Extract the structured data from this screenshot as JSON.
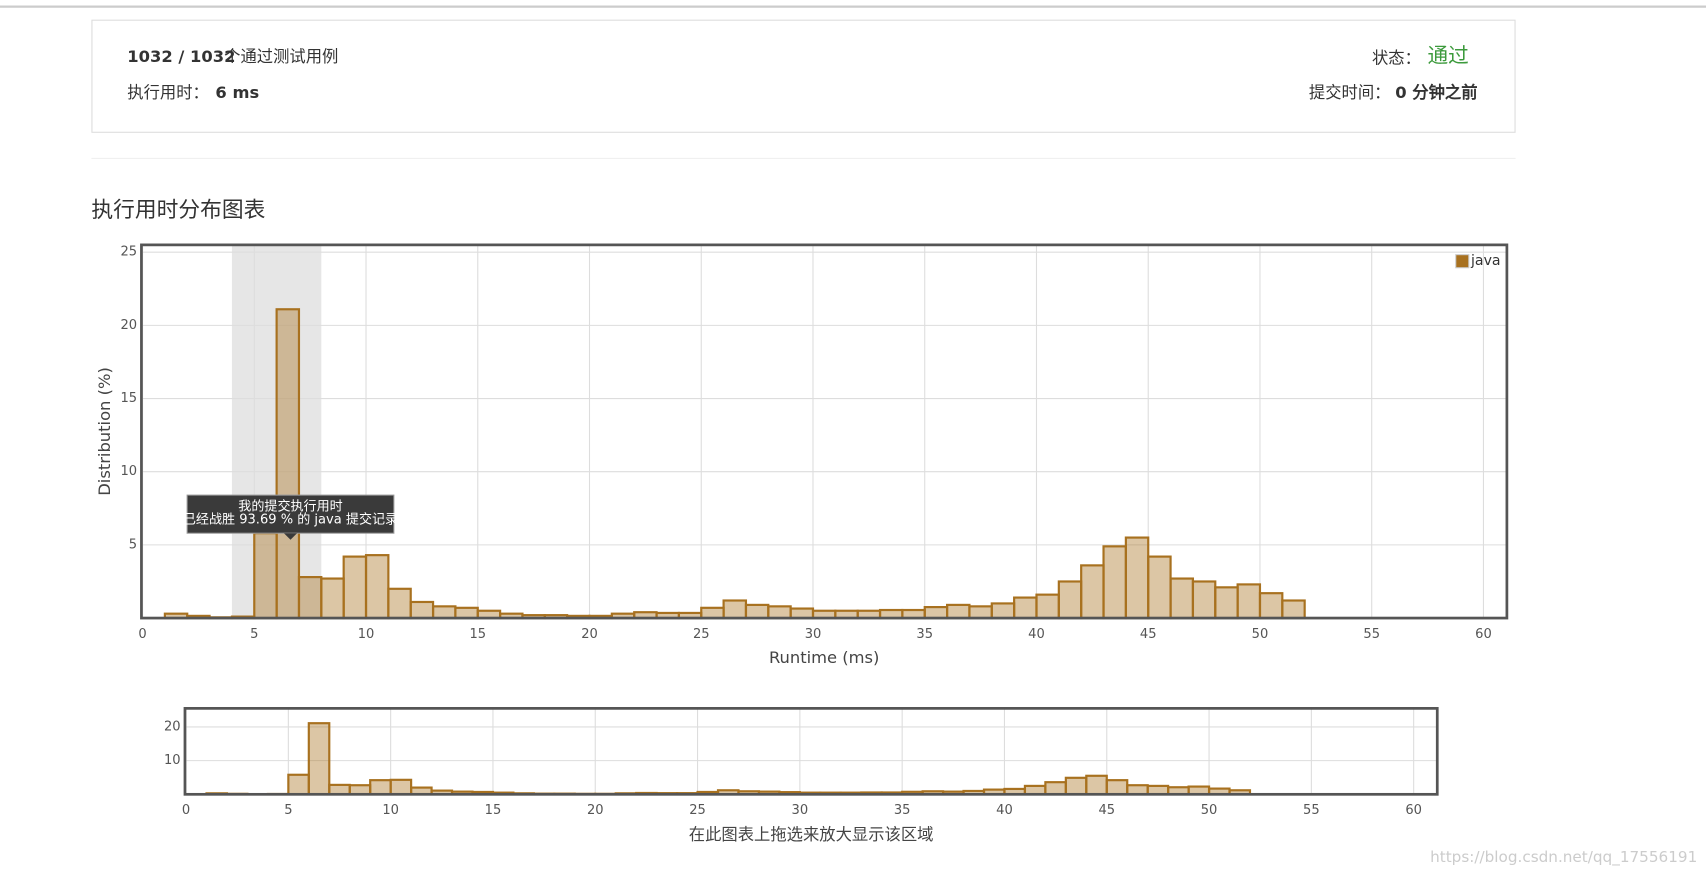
{
  "summary": {
    "passed": "1032 / 1032",
    "passed_label": "个通过测试用例",
    "runtime_label": "执行用时：",
    "runtime": "6 ms",
    "status_label": "状态：",
    "status": "通过",
    "submit_label": "提交时间：",
    "submit_time": "0 分钟之前"
  },
  "section_title": "执行用时分布图表",
  "chart_data": [
    {
      "type": "histogram",
      "xlabel": "Runtime (ms)",
      "ylabel": "Distribution (%)",
      "bins": [
        1,
        2,
        3,
        4,
        5,
        6,
        7,
        8,
        9,
        10,
        11,
        12,
        13,
        14,
        15,
        16,
        17,
        18,
        19,
        20,
        21,
        22,
        23,
        24,
        25,
        26,
        27,
        28,
        29,
        30,
        31,
        32,
        33,
        34,
        35,
        36,
        37,
        38,
        39,
        40,
        41,
        42,
        43,
        44,
        45,
        46,
        47,
        48,
        49,
        50,
        51,
        52
      ],
      "series": [
        {
          "name": "java",
          "color": "#a8711f",
          "values": [
            0.3,
            0.15,
            0.05,
            0.1,
            5.8,
            21.1,
            2.8,
            2.7,
            4.2,
            4.3,
            2.0,
            1.1,
            0.8,
            0.7,
            0.5,
            0.3,
            0.2,
            0.2,
            0.15,
            0.15,
            0.3,
            0.4,
            0.35,
            0.35,
            0.7,
            1.2,
            0.9,
            0.8,
            0.65,
            0.5,
            0.5,
            0.5,
            0.55,
            0.55,
            0.75,
            0.9,
            0.8,
            1.0,
            1.4,
            1.6,
            2.5,
            3.6,
            4.9,
            5.5,
            4.2,
            2.7,
            2.5,
            2.1,
            2.3,
            1.7,
            1.2
          ]
        }
      ],
      "xlim": [
        0,
        61
      ],
      "ylim": [
        0,
        25.5
      ],
      "xticks": [
        0,
        5,
        10,
        15,
        20,
        25,
        30,
        35,
        40,
        45,
        50,
        55,
        60
      ],
      "yticks": [
        5,
        10,
        15,
        20,
        25
      ],
      "grid": true,
      "legend": "upper right",
      "highlight_band": [
        4,
        8
      ],
      "annotations": [
        "我的提交执行用时",
        "已经战胜 93.69 % 的 java 提交记录"
      ]
    },
    {
      "type": "histogram",
      "xlabel": "在此图表上拖选来放大显示该区域",
      "bins": [
        1,
        2,
        3,
        4,
        5,
        6,
        7,
        8,
        9,
        10,
        11,
        12,
        13,
        14,
        15,
        16,
        17,
        18,
        19,
        20,
        21,
        22,
        23,
        24,
        25,
        26,
        27,
        28,
        29,
        30,
        31,
        32,
        33,
        34,
        35,
        36,
        37,
        38,
        39,
        40,
        41,
        42,
        43,
        44,
        45,
        46,
        47,
        48,
        49,
        50,
        51,
        52
      ],
      "series": [
        {
          "color": "#a8711f",
          "values": [
            0.3,
            0.15,
            0.05,
            0.1,
            5.8,
            21.1,
            2.8,
            2.7,
            4.2,
            4.3,
            2.0,
            1.1,
            0.8,
            0.7,
            0.5,
            0.3,
            0.2,
            0.2,
            0.15,
            0.15,
            0.3,
            0.4,
            0.35,
            0.35,
            0.7,
            1.2,
            0.9,
            0.8,
            0.65,
            0.5,
            0.5,
            0.5,
            0.55,
            0.55,
            0.75,
            0.9,
            0.8,
            1.0,
            1.4,
            1.6,
            2.5,
            3.6,
            4.9,
            5.5,
            4.2,
            2.7,
            2.5,
            2.1,
            2.3,
            1.7,
            1.2
          ]
        }
      ],
      "xlim": [
        0,
        61.1
      ],
      "ylim": [
        0,
        25.5
      ],
      "xticks": [
        0,
        5,
        10,
        15,
        20,
        25,
        30,
        35,
        40,
        45,
        50,
        55,
        60
      ],
      "yticks": [
        10,
        20
      ],
      "grid": true
    }
  ],
  "watermark": "https://blog.csdn.net/qq_17556191"
}
